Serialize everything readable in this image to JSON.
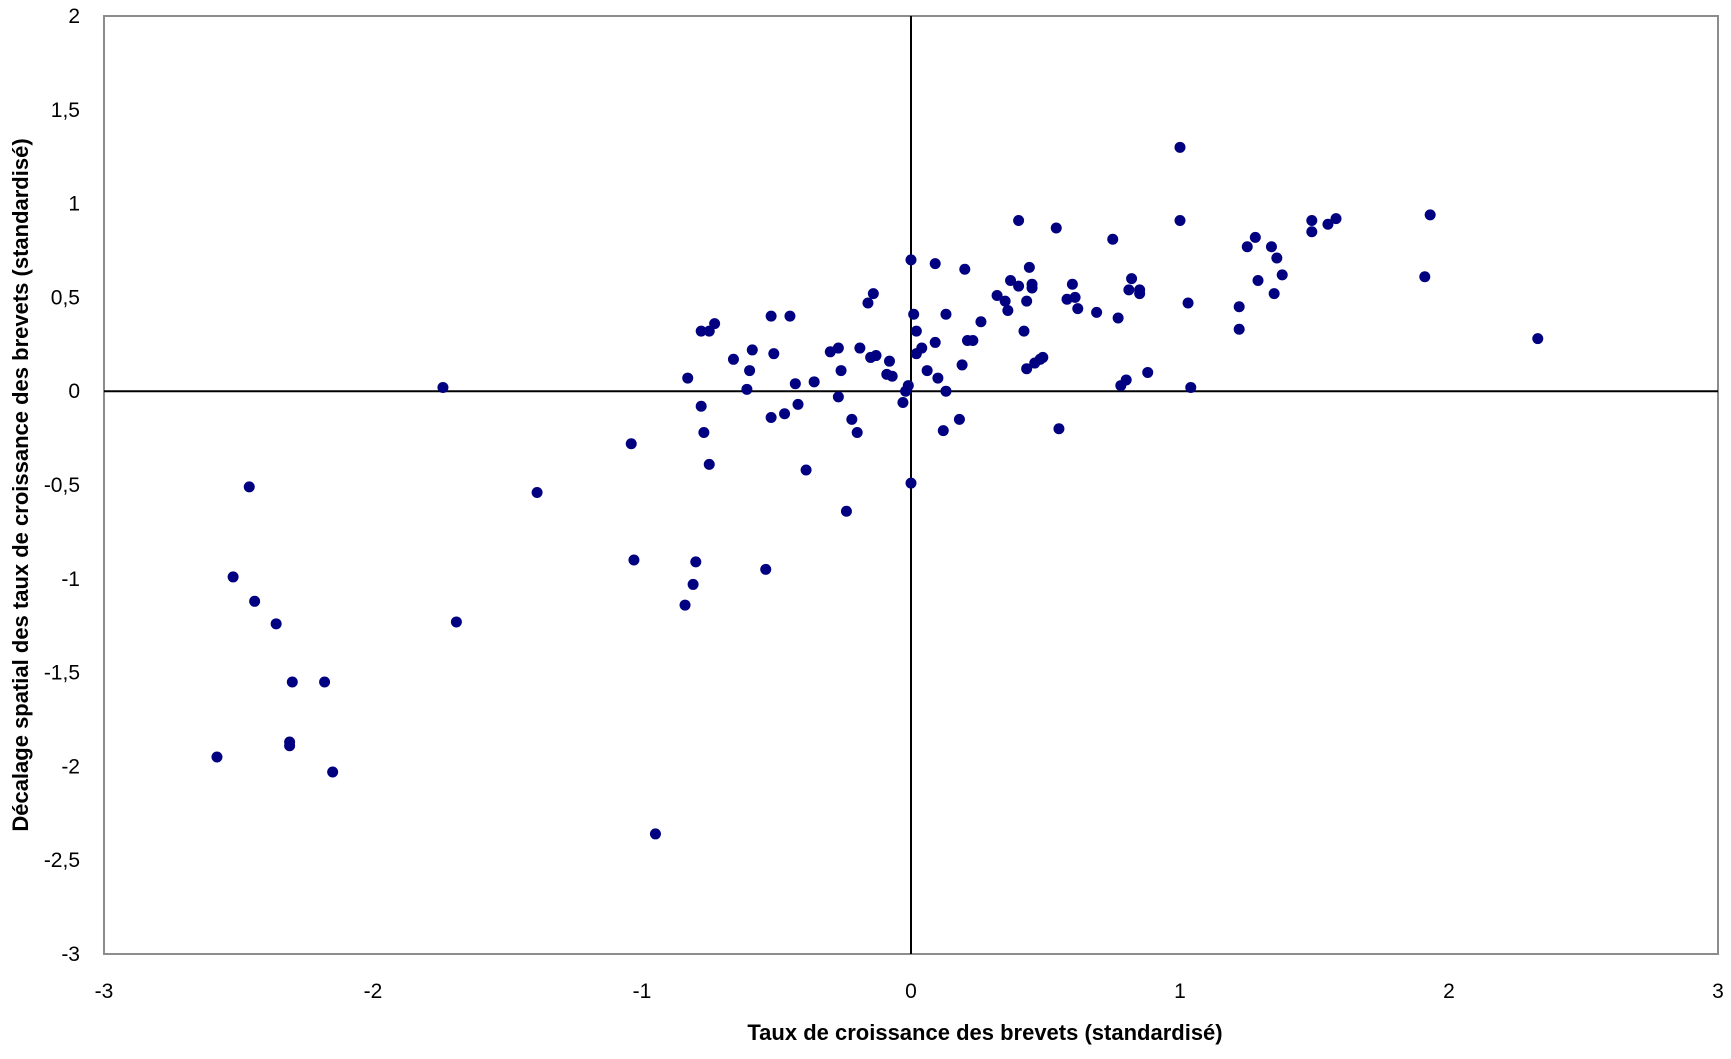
{
  "chart_data": {
    "type": "scatter",
    "title": "",
    "xlabel": "Taux de croissance  des brevets  (standardisé)",
    "ylabel": "Décalage spatial des taux de croissance  des brevets  (standardisé)",
    "xlim": [
      -3,
      3
    ],
    "ylim": [
      -3,
      2
    ],
    "x_ticks": [
      -3,
      -2,
      -1,
      0,
      1,
      2,
      3
    ],
    "y_ticks": [
      2,
      1.5,
      1,
      0.5,
      0,
      -0.5,
      -1,
      -1.5,
      -2,
      -2.5,
      -3
    ],
    "x_tick_labels": [
      "-3",
      "-2",
      "-1",
      "0",
      "1",
      "2",
      "3"
    ],
    "y_tick_labels": [
      "2",
      "1,5",
      "1",
      "0,5",
      "0",
      "-0,5",
      "-1",
      "-1,5",
      "-2",
      "-2,5",
      "-3"
    ],
    "grid": false,
    "legend": "none",
    "reference_lines": {
      "x": 0,
      "y": 0
    },
    "marker_color": "#000080",
    "points": [
      [
        -2.58,
        -1.95
      ],
      [
        -2.46,
        -0.51
      ],
      [
        -2.52,
        -0.99
      ],
      [
        -2.44,
        -1.12
      ],
      [
        -2.36,
        -1.24
      ],
      [
        -2.31,
        -1.87
      ],
      [
        -2.31,
        -1.89
      ],
      [
        -2.3,
        -1.55
      ],
      [
        -2.18,
        -1.55
      ],
      [
        -2.15,
        -2.03
      ],
      [
        -1.74,
        0.02
      ],
      [
        -1.69,
        -1.23
      ],
      [
        -1.39,
        -0.54
      ],
      [
        -1.04,
        -0.28
      ],
      [
        -1.03,
        -0.9
      ],
      [
        -0.95,
        -2.36
      ],
      [
        -0.84,
        -1.14
      ],
      [
        -0.83,
        0.07
      ],
      [
        -0.81,
        -1.03
      ],
      [
        -0.8,
        -0.91
      ],
      [
        -0.78,
        -0.08
      ],
      [
        -0.78,
        0.32
      ],
      [
        -0.77,
        -0.22
      ],
      [
        -0.75,
        -0.39
      ],
      [
        -0.75,
        0.32
      ],
      [
        -0.73,
        0.36
      ],
      [
        -0.66,
        0.17
      ],
      [
        -0.61,
        0.01
      ],
      [
        -0.6,
        0.11
      ],
      [
        -0.59,
        0.22
      ],
      [
        -0.54,
        -0.95
      ],
      [
        -0.52,
        -0.14
      ],
      [
        -0.52,
        0.4
      ],
      [
        -0.51,
        0.2
      ],
      [
        -0.47,
        -0.12
      ],
      [
        -0.45,
        0.4
      ],
      [
        -0.43,
        0.04
      ],
      [
        -0.42,
        -0.07
      ],
      [
        -0.39,
        -0.42
      ],
      [
        -0.36,
        0.05
      ],
      [
        -0.3,
        0.21
      ],
      [
        -0.27,
        0.23
      ],
      [
        -0.27,
        -0.03
      ],
      [
        -0.26,
        0.11
      ],
      [
        -0.24,
        -0.64
      ],
      [
        -0.22,
        -0.15
      ],
      [
        -0.2,
        -0.22
      ],
      [
        -0.19,
        0.23
      ],
      [
        -0.16,
        0.47
      ],
      [
        -0.15,
        0.18
      ],
      [
        -0.14,
        0.52
      ],
      [
        -0.13,
        0.19
      ],
      [
        -0.09,
        0.09
      ],
      [
        -0.08,
        0.16
      ],
      [
        -0.07,
        0.08
      ],
      [
        -0.03,
        -0.06
      ],
      [
        -0.02,
        0.0
      ],
      [
        -0.01,
        0.03
      ],
      [
        0.0,
        0.7
      ],
      [
        0.0,
        -0.49
      ],
      [
        0.01,
        0.41
      ],
      [
        0.02,
        0.2
      ],
      [
        0.02,
        0.32
      ],
      [
        0.04,
        0.23
      ],
      [
        0.06,
        0.11
      ],
      [
        0.09,
        0.68
      ],
      [
        0.09,
        0.26
      ],
      [
        0.1,
        0.07
      ],
      [
        0.12,
        -0.21
      ],
      [
        0.13,
        0.41
      ],
      [
        0.13,
        0.0
      ],
      [
        0.18,
        -0.15
      ],
      [
        0.19,
        0.14
      ],
      [
        0.2,
        0.65
      ],
      [
        0.21,
        0.27
      ],
      [
        0.23,
        0.27
      ],
      [
        0.26,
        0.37
      ],
      [
        0.32,
        0.51
      ],
      [
        0.35,
        0.48
      ],
      [
        0.36,
        0.43
      ],
      [
        0.37,
        0.59
      ],
      [
        0.4,
        0.91
      ],
      [
        0.4,
        0.56
      ],
      [
        0.42,
        0.32
      ],
      [
        0.43,
        0.48
      ],
      [
        0.43,
        0.12
      ],
      [
        0.44,
        0.66
      ],
      [
        0.45,
        0.57
      ],
      [
        0.45,
        0.55
      ],
      [
        0.46,
        0.15
      ],
      [
        0.48,
        0.17
      ],
      [
        0.49,
        0.18
      ],
      [
        0.54,
        0.87
      ],
      [
        0.55,
        -0.2
      ],
      [
        0.58,
        0.49
      ],
      [
        0.6,
        0.57
      ],
      [
        0.61,
        0.5
      ],
      [
        0.62,
        0.44
      ],
      [
        0.69,
        0.42
      ],
      [
        0.75,
        0.81
      ],
      [
        0.77,
        0.39
      ],
      [
        0.78,
        0.03
      ],
      [
        0.8,
        0.06
      ],
      [
        0.81,
        0.54
      ],
      [
        0.82,
        0.6
      ],
      [
        0.85,
        0.54
      ],
      [
        0.85,
        0.52
      ],
      [
        0.88,
        0.1
      ],
      [
        1.0,
        1.3
      ],
      [
        1.0,
        0.91
      ],
      [
        1.03,
        0.47
      ],
      [
        1.04,
        0.02
      ],
      [
        1.22,
        0.45
      ],
      [
        1.22,
        0.33
      ],
      [
        1.25,
        0.77
      ],
      [
        1.28,
        0.82
      ],
      [
        1.29,
        0.59
      ],
      [
        1.34,
        0.77
      ],
      [
        1.35,
        0.52
      ],
      [
        1.36,
        0.71
      ],
      [
        1.38,
        0.62
      ],
      [
        1.49,
        0.91
      ],
      [
        1.49,
        0.85
      ],
      [
        1.55,
        0.89
      ],
      [
        1.58,
        0.92
      ],
      [
        1.91,
        0.61
      ],
      [
        1.93,
        0.94
      ],
      [
        2.33,
        0.28
      ]
    ]
  }
}
